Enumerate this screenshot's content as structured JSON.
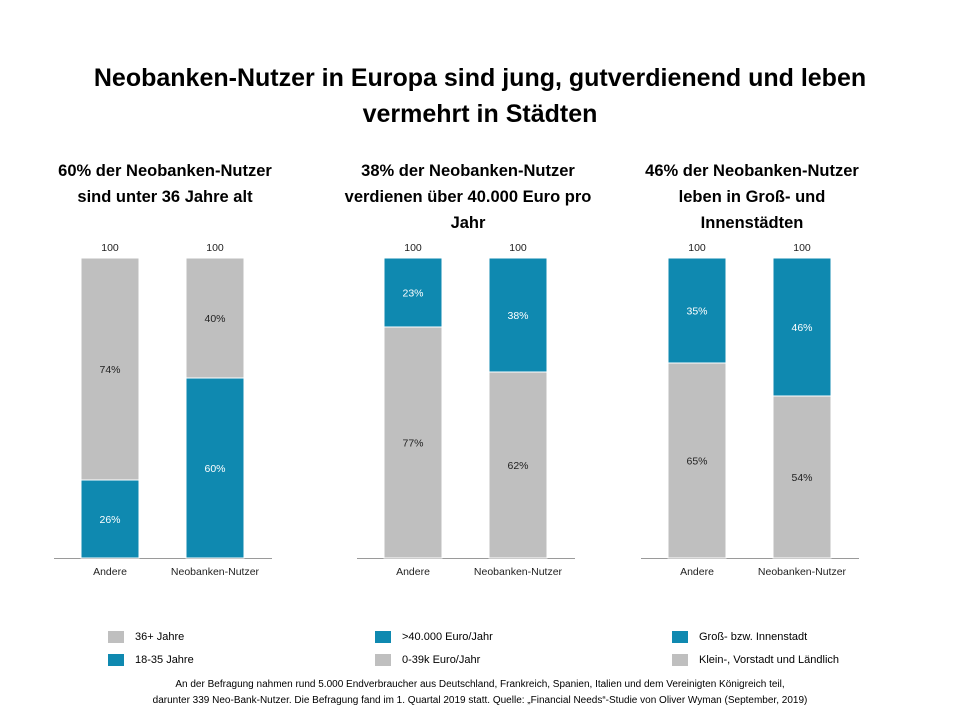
{
  "title": "Neobanken-Nutzer in Europa sind jung, gutverdienend und leben vermehrt in Städten",
  "colors": {
    "blue": "#0f89b0",
    "gray": "#bfbfbf"
  },
  "charts": [
    {
      "title": "60% der Neobanken-Nutzer sind unter 36 Jahre alt",
      "legend": [
        {
          "label": "36+ Jahre",
          "color": "#bfbfbf"
        },
        {
          "label": "18-35 Jahre",
          "color": "#0f89b0"
        }
      ]
    },
    {
      "title": "38% der Neobanken-Nutzer verdienen über 40.000 Euro pro Jahr",
      "legend": [
        {
          "label": ">40.000 Euro/Jahr",
          "color": "#0f89b0"
        },
        {
          "label": "0-39k Euro/Jahr",
          "color": "#bfbfbf"
        }
      ]
    },
    {
      "title": "46% der Neobanken-Nutzer leben in Groß- und Innenstädten",
      "legend": [
        {
          "label": "Groß- bzw. Innenstadt",
          "color": "#0f89b0"
        },
        {
          "label": "Klein-, Vorstadt und Ländlich",
          "color": "#bfbfbf"
        }
      ]
    }
  ],
  "chart_data": [
    {
      "type": "bar",
      "stacked": true,
      "categories": [
        "Andere",
        "Neobanken-Nutzer"
      ],
      "totals": [
        100,
        100
      ],
      "ylim": [
        0,
        100
      ],
      "series": [
        {
          "name": "18-35 Jahre",
          "color": "#0f89b0",
          "values": [
            26,
            60
          ]
        },
        {
          "name": "36+ Jahre",
          "color": "#bfbfbf",
          "values": [
            74,
            40
          ]
        }
      ]
    },
    {
      "type": "bar",
      "stacked": true,
      "categories": [
        "Andere",
        "Neobanken-Nutzer"
      ],
      "totals": [
        100,
        100
      ],
      "ylim": [
        0,
        100
      ],
      "series": [
        {
          "name": "0-39k Euro/Jahr",
          "color": "#bfbfbf",
          "values": [
            77,
            62
          ]
        },
        {
          "name": ">40.000 Euro/Jahr",
          "color": "#0f89b0",
          "values": [
            23,
            38
          ]
        }
      ]
    },
    {
      "type": "bar",
      "stacked": true,
      "categories": [
        "Andere",
        "Neobanken-Nutzer"
      ],
      "totals": [
        100,
        100
      ],
      "ylim": [
        0,
        100
      ],
      "series": [
        {
          "name": "Klein-, Vorstadt und Ländlich",
          "color": "#bfbfbf",
          "values": [
            65,
            54
          ]
        },
        {
          "name": "Groß- bzw. Innenstadt",
          "color": "#0f89b0",
          "values": [
            35,
            46
          ]
        }
      ]
    }
  ],
  "footnote": {
    "line1": "An der Befragung nahmen rund 5.000 Endverbraucher aus Deutschland, Frankreich, Spanien, Italien und dem Vereinigten Königreich teil,",
    "line2": "darunter 339 Neo-Bank-Nutzer. Die Befragung fand im 1. Quartal 2019 statt. Quelle: „Financial Needs“-Studie von Oliver Wyman (September, 2019)"
  }
}
